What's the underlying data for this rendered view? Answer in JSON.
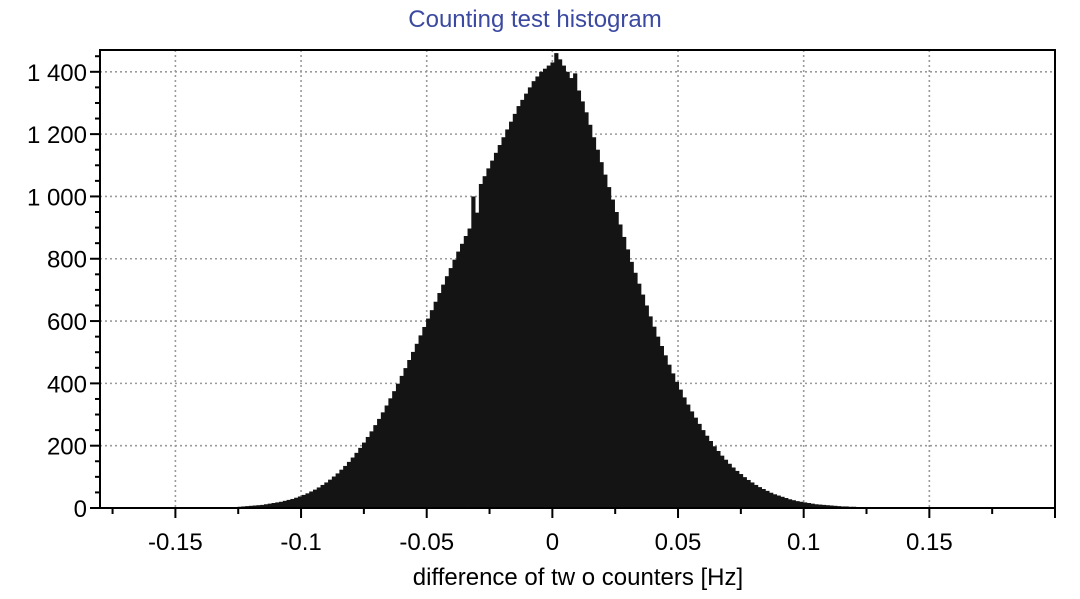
{
  "chart_data": {
    "type": "bar",
    "title": "Counting test histogram",
    "xlabel": "difference of tw o counters [Hz]",
    "ylabel": "",
    "xlim": [
      -0.18,
      0.2
    ],
    "ylim": [
      0,
      1470
    ],
    "x_ticks": [
      -0.15,
      -0.1,
      -0.05,
      0,
      0.05,
      0.1,
      0.15
    ],
    "x_tick_labels": [
      "-0.15",
      "-0.1",
      "-0.05",
      "0",
      "0.05",
      "0.1",
      "0.15"
    ],
    "y_ticks": [
      0,
      200,
      400,
      600,
      800,
      1000,
      1200,
      1400
    ],
    "y_tick_labels": [
      "0",
      "200",
      "400",
      "600",
      "800",
      "1 000",
      "1 200",
      "1 400"
    ],
    "grid": true,
    "bar_color": "#141414",
    "title_color": "#3b4aa0",
    "bin_width": 0.0015,
    "bins": {
      "x": [
        -0.1245,
        -0.123,
        -0.1215,
        -0.12,
        -0.1185,
        -0.117,
        -0.1155,
        -0.114,
        -0.1125,
        -0.111,
        -0.1095,
        -0.108,
        -0.1065,
        -0.105,
        -0.1035,
        -0.102,
        -0.1005,
        -0.099,
        -0.0975,
        -0.096,
        -0.0945,
        -0.093,
        -0.0915,
        -0.09,
        -0.0885,
        -0.087,
        -0.0855,
        -0.084,
        -0.0825,
        -0.081,
        -0.0795,
        -0.078,
        -0.0765,
        -0.075,
        -0.0735,
        -0.072,
        -0.0705,
        -0.069,
        -0.0675,
        -0.066,
        -0.0645,
        -0.063,
        -0.0615,
        -0.06,
        -0.0585,
        -0.057,
        -0.0555,
        -0.054,
        -0.0525,
        -0.051,
        -0.0495,
        -0.048,
        -0.0465,
        -0.045,
        -0.0435,
        -0.042,
        -0.0405,
        -0.039,
        -0.0375,
        -0.036,
        -0.0345,
        -0.033,
        -0.0315,
        -0.03,
        -0.0285,
        -0.027,
        -0.0255,
        -0.024,
        -0.0225,
        -0.021,
        -0.0195,
        -0.018,
        -0.0165,
        -0.015,
        -0.0135,
        -0.012,
        -0.0105,
        -0.009,
        -0.0075,
        -0.006,
        -0.0045,
        -0.003,
        -0.0015,
        0,
        0.0015,
        0.003,
        0.0045,
        0.006,
        0.0075,
        0.009,
        0.0105,
        0.012,
        0.0135,
        0.015,
        0.0165,
        0.018,
        0.0195,
        0.021,
        0.0225,
        0.024,
        0.0255,
        0.027,
        0.0285,
        0.03,
        0.0315,
        0.033,
        0.0345,
        0.036,
        0.0375,
        0.039,
        0.0405,
        0.042,
        0.0435,
        0.045,
        0.0465,
        0.048,
        0.0495,
        0.051,
        0.0525,
        0.054,
        0.0555,
        0.057,
        0.0585,
        0.06,
        0.0615,
        0.063,
        0.0645,
        0.066,
        0.0675,
        0.069,
        0.0705,
        0.072,
        0.0735,
        0.075,
        0.0765,
        0.078,
        0.0795,
        0.081,
        0.0825,
        0.084,
        0.0855,
        0.087,
        0.0885,
        0.09,
        0.0915,
        0.093,
        0.0945,
        0.096,
        0.0975,
        0.099,
        0.1005,
        0.102,
        0.1035,
        0.105,
        0.1065,
        0.108,
        0.1095,
        0.111,
        0.1125,
        0.114,
        0.1155,
        0.117,
        0.1185,
        0.12,
        0.1215,
        0.123,
        0.1245
      ],
      "counts": [
        4,
        5,
        6,
        7,
        8,
        9,
        10,
        12,
        14,
        16,
        18,
        20,
        23,
        26,
        29,
        33,
        37,
        42,
        47,
        53,
        59,
        66,
        74,
        82,
        91,
        101,
        111,
        123,
        135,
        148,
        162,
        177,
        193,
        210,
        228,
        246,
        266,
        286,
        307,
        329,
        352,
        375,
        399,
        424,
        449,
        475,
        501,
        527,
        554,
        581,
        608,
        635,
        662,
        690,
        717,
        744,
        770,
        797,
        823,
        848,
        873,
        897,
        1000,
        948,
        1040,
        1065,
        1090,
        1115,
        1140,
        1165,
        1190,
        1215,
        1240,
        1265,
        1290,
        1310,
        1330,
        1350,
        1370,
        1385,
        1400,
        1410,
        1420,
        1430,
        1460,
        1440,
        1420,
        1400,
        1380,
        1395,
        1340,
        1305,
        1270,
        1230,
        1190,
        1150,
        1110,
        1070,
        1030,
        990,
        950,
        910,
        870,
        830,
        790,
        755,
        720,
        685,
        650,
        615,
        582,
        550,
        520,
        490,
        460,
        432,
        405,
        380,
        355,
        332,
        310,
        290,
        270,
        250,
        232,
        215,
        198,
        183,
        168,
        155,
        142,
        130,
        119,
        109,
        99,
        90,
        82,
        74,
        67,
        61,
        55,
        49,
        44,
        40,
        36,
        32,
        28,
        25,
        22,
        20,
        18,
        16,
        14,
        12,
        11,
        10,
        9,
        8,
        7,
        6,
        5,
        5,
        4,
        4,
        3,
        3,
        3
      ]
    }
  }
}
